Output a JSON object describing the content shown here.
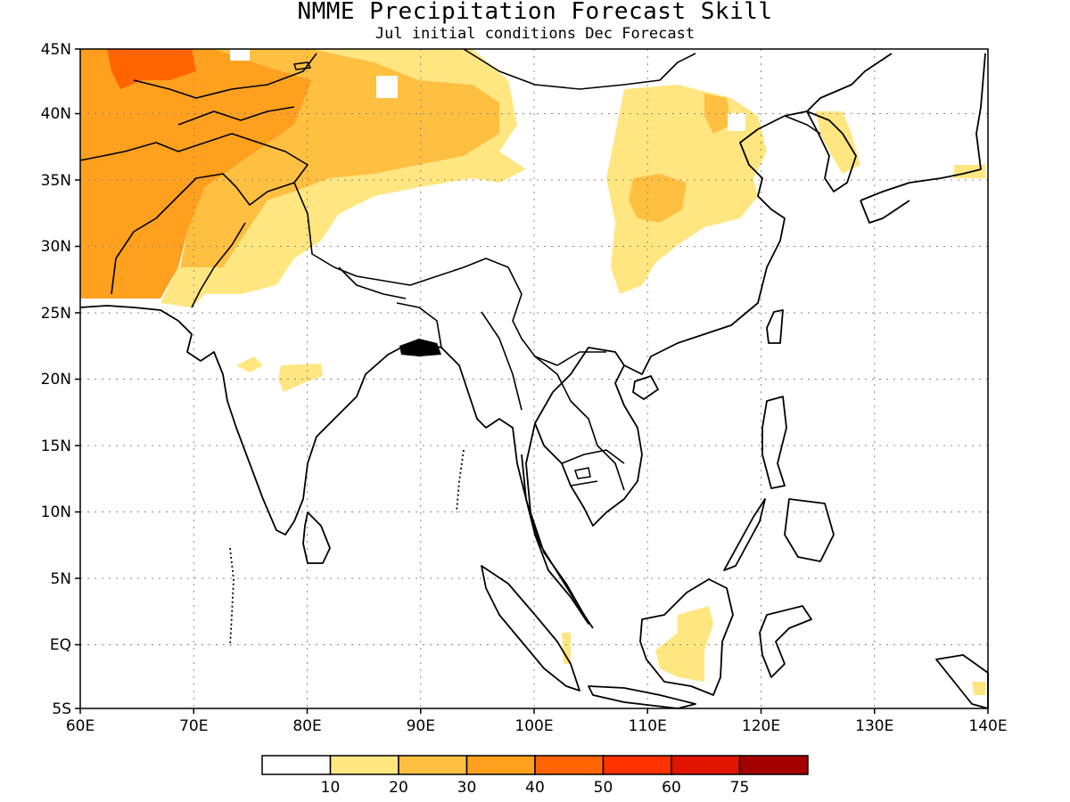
{
  "title": "NMME Precipitation Forecast Skill",
  "subtitle": "Jul initial conditions   Dec Forecast",
  "map": {
    "lon_range": [
      60,
      140
    ],
    "lat_range": [
      -5,
      45
    ],
    "lat_ticks": [
      {
        "value": 45,
        "label": "45N"
      },
      {
        "value": 40,
        "label": "40N"
      },
      {
        "value": 35,
        "label": "35N"
      },
      {
        "value": 30,
        "label": "30N"
      },
      {
        "value": 25,
        "label": "25N"
      },
      {
        "value": 20,
        "label": "20N"
      },
      {
        "value": 15,
        "label": "15N"
      },
      {
        "value": 10,
        "label": "10N"
      },
      {
        "value": 5,
        "label": "5N"
      },
      {
        "value": 0,
        "label": "EQ"
      },
      {
        "value": -5,
        "label": "5S"
      }
    ],
    "lon_ticks": [
      {
        "value": 60,
        "label": "60E"
      },
      {
        "value": 70,
        "label": "70E"
      },
      {
        "value": 80,
        "label": "80E"
      },
      {
        "value": 90,
        "label": "90E"
      },
      {
        "value": 100,
        "label": "100E"
      },
      {
        "value": 110,
        "label": "110E"
      },
      {
        "value": 120,
        "label": "120E"
      },
      {
        "value": 130,
        "label": "130E"
      },
      {
        "value": 140,
        "label": "140E"
      }
    ],
    "grid": "dotted"
  },
  "colorbar": {
    "colors": [
      "#ffffff",
      "#ffe680",
      "#ffbf40",
      "#ffa01e",
      "#ff6400",
      "#ff3200",
      "#e11400",
      "#a50000"
    ],
    "labels": [
      "10",
      "20",
      "30",
      "40",
      "50",
      "60",
      "75"
    ]
  }
}
